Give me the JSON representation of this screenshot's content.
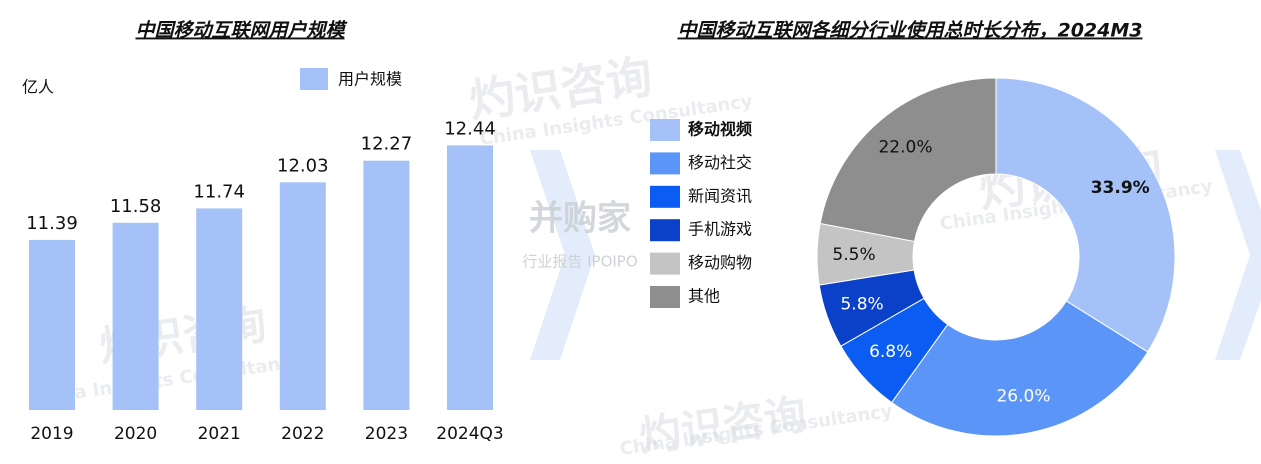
{
  "chart_data": [
    {
      "type": "bar",
      "title": "中国移动互联网用户规模",
      "unit": "亿人",
      "categories": [
        "2019",
        "2020",
        "2021",
        "2022",
        "2023",
        "2024Q3"
      ],
      "series": [
        {
          "name": "用户规模",
          "color": "#a4c2f7",
          "values": [
            11.39,
            11.58,
            11.74,
            12.03,
            12.27,
            12.44
          ]
        }
      ],
      "ylim": [
        9.5,
        12.5
      ]
    },
    {
      "type": "donut",
      "title": "中国移动互联网各细分行业使用总时长分布，2024M3",
      "categories": [
        "移动视频",
        "移动社交",
        "新闻资讯",
        "手机游戏",
        "移动购物",
        "其他"
      ],
      "values": [
        33.9,
        26.0,
        6.8,
        5.8,
        5.5,
        22.0
      ],
      "value_labels": [
        "33.9%",
        "26.0%",
        "6.8%",
        "5.8%",
        "5.5%",
        "22.0%"
      ],
      "colors": [
        "#a4c2f7",
        "#5b95f8",
        "#0a5cf2",
        "#0b40c9",
        "#c4c4c4",
        "#8e8e8e"
      ]
    }
  ],
  "watermark": [
    "灼识咨询",
    "China Insights Consultancy",
    "并购家",
    "行业报告 IPOIPO"
  ]
}
